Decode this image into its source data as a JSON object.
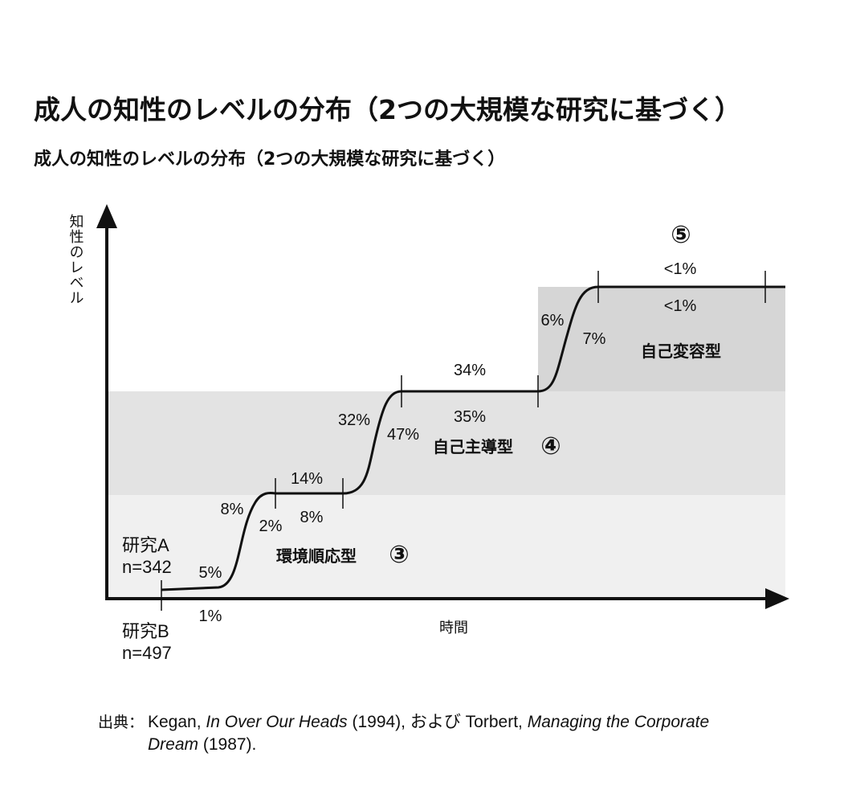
{
  "title": "成人の知性のレベルの分布（2つの大規模な研究に基づく）",
  "subtitle": "成人の知性のレベルの分布（2つの大規模な研究に基づく）",
  "axes": {
    "y_label": "知性のレベル",
    "x_label": "時間"
  },
  "zones": [
    {
      "label": "環境順応型",
      "number": "③",
      "color": "#f0f0f0"
    },
    {
      "label": "自己主導型",
      "number": "④",
      "color": "#e3e3e3"
    },
    {
      "label": "自己変容型",
      "number": "⑤",
      "color": "#d6d6d6"
    }
  ],
  "studies": {
    "a_name": "研究A",
    "a_n": "n=342",
    "b_name": "研究B",
    "b_n": "n=497"
  },
  "percentages": {
    "a": [
      "5%",
      "8%",
      "14%",
      "32%",
      "34%",
      "6%",
      "<1%"
    ],
    "b": [
      "1%",
      "2%",
      "8%",
      "47%",
      "35%",
      "7%",
      "<1%"
    ]
  },
  "source": {
    "prefix": "出典：",
    "author1": "Kegan, ",
    "book1": "In Over Our Heads",
    "year1": " (1994), および Torbert, ",
    "book2_part1": "Managing the Corporate",
    "book2_part2": "Dream",
    "year2": " (1987)."
  }
}
